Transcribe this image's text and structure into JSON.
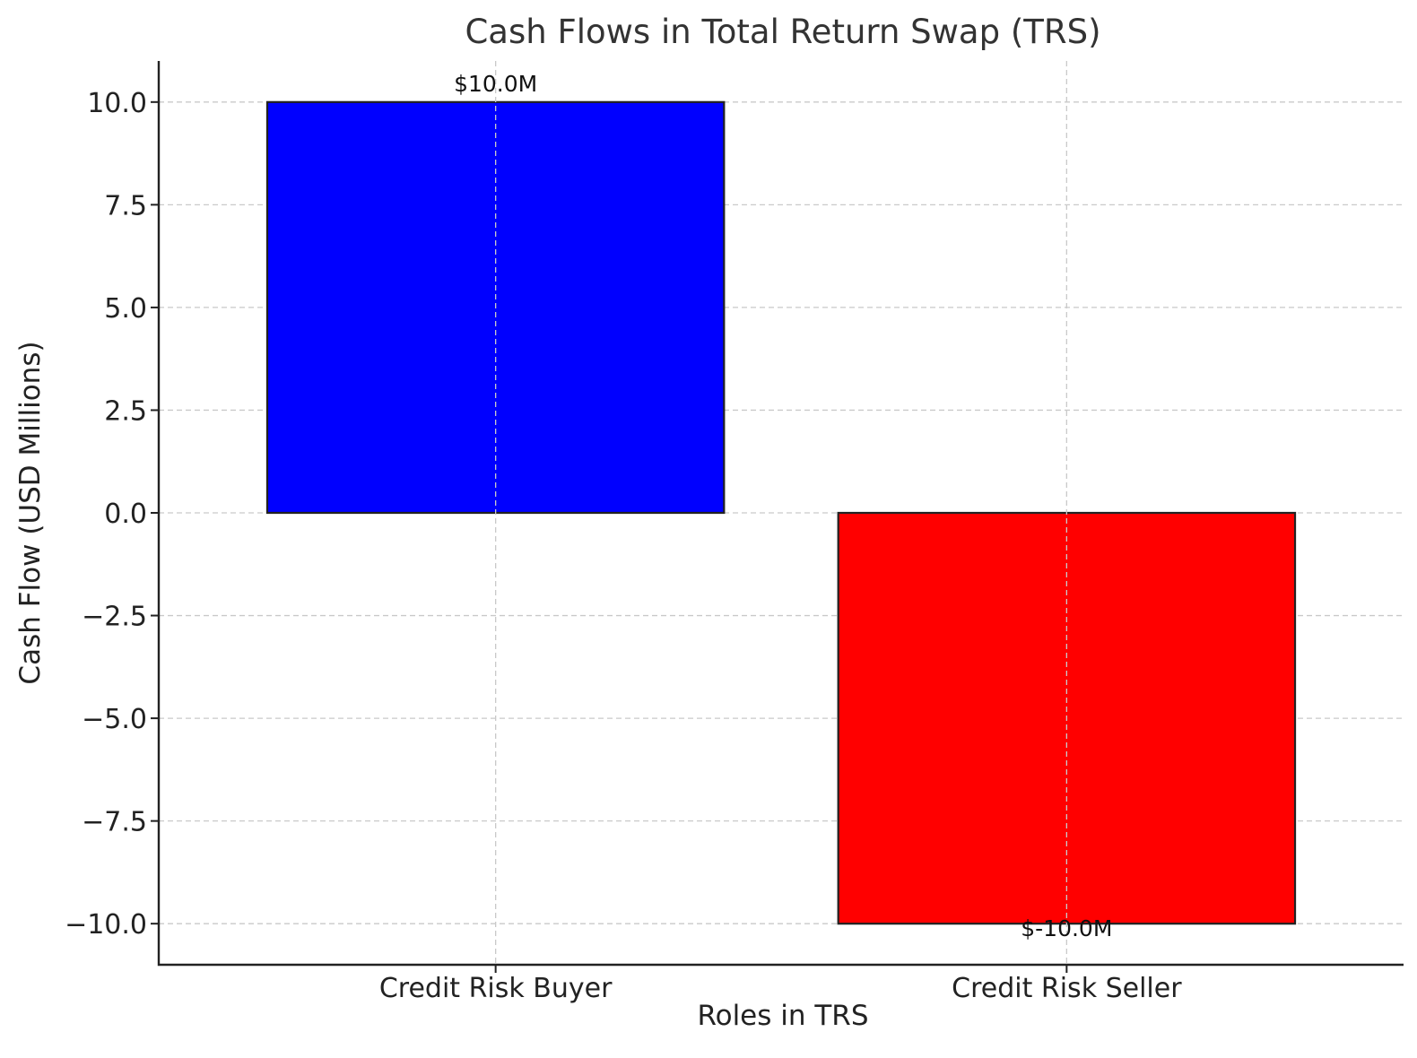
{
  "chart_data": {
    "type": "bar",
    "title": "Cash Flows in Total Return Swap (TRS)",
    "xlabel": "Roles in TRS",
    "ylabel": "Cash Flow (USD Millions)",
    "categories": [
      "Credit Risk Buyer",
      "Credit Risk Seller"
    ],
    "values": [
      10.0,
      -10.0
    ],
    "data_labels": [
      "$10.0M",
      "$-10.0M"
    ],
    "colors": [
      "#0000ff",
      "#ff0000"
    ],
    "ylim": [
      -11,
      11
    ],
    "yticks": [
      10.0,
      7.5,
      5.0,
      2.5,
      0.0,
      -2.5,
      -5.0,
      -7.5,
      -10.0
    ],
    "ytick_labels": [
      "10.0",
      "7.5",
      "5.0",
      "2.5",
      "0.0",
      "−2.5",
      "−5.0",
      "−7.5",
      "−10.0"
    ],
    "grid": true,
    "legend": "none"
  }
}
